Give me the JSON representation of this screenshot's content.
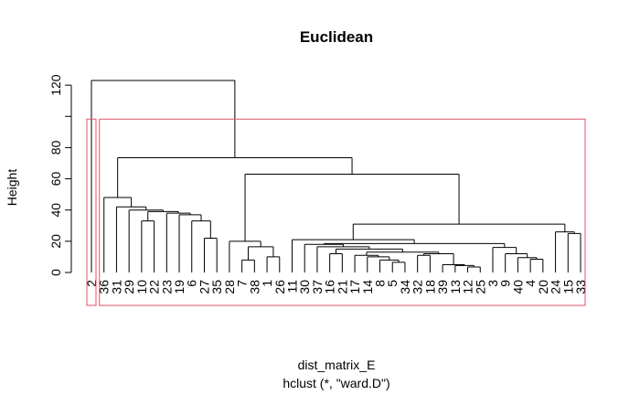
{
  "chart_data": {
    "type": "dendrogram",
    "title": "Euclidean",
    "y_label": "Height",
    "x_label": "dist_matrix_E",
    "subtitle": "hclust (*, \"ward.D\")",
    "ylim": [
      0,
      123
    ],
    "yticks": [
      0,
      20,
      40,
      60,
      80,
      {
        "value": 100,
        "label": null
      },
      120
    ],
    "color": "#000000",
    "cluster_boxes": {
      "k": 2,
      "color": "#df536b"
    },
    "tree": {
      "height": 123,
      "children": [
        {
          "label": "2"
        },
        {
          "height": 73.5,
          "children": [
            {
              "height": 48,
              "children": [
                {
                  "label": "36"
                },
                {
                  "height": 42,
                  "children": [
                    {
                      "label": "31"
                    },
                    {
                      "height": 40,
                      "children": [
                        {
                          "label": "29"
                        },
                        {
                          "height": 39,
                          "children": [
                            {
                              "height": 33,
                              "children": [
                                {
                                  "label": "10"
                                },
                                {
                                  "label": "22"
                                }
                              ]
                            },
                            {
                              "height": 38,
                              "children": [
                                {
                                  "label": "23"
                                },
                                {
                                  "height": 37,
                                  "children": [
                                    {
                                      "label": "19"
                                    },
                                    {
                                      "height": 33,
                                      "children": [
                                        {
                                          "label": "6"
                                        },
                                        {
                                          "height": 22,
                                          "children": [
                                            {
                                              "label": "27"
                                            },
                                            {
                                              "label": "35"
                                            }
                                          ]
                                        }
                                      ]
                                    }
                                  ]
                                }
                              ]
                            }
                          ]
                        }
                      ]
                    }
                  ]
                }
              ]
            },
            {
              "height": 63,
              "children": [
                {
                  "height": 20,
                  "children": [
                    {
                      "label": "28"
                    },
                    {
                      "height": 16.5,
                      "children": [
                        {
                          "height": 8,
                          "children": [
                            {
                              "label": "7"
                            },
                            {
                              "label": "38"
                            }
                          ]
                        },
                        {
                          "height": 10,
                          "children": [
                            {
                              "label": "1"
                            },
                            {
                              "label": "26"
                            }
                          ]
                        }
                      ]
                    }
                  ]
                },
                {
                  "height": 31,
                  "children": [
                    {
                      "height": 21,
                      "children": [
                        {
                          "label": "11"
                        },
                        {
                          "height": 18.5,
                          "children": [
                            {
                              "height": 18,
                              "children": [
                                {
                                  "label": "30"
                                },
                                {
                                  "height": 16.5,
                                  "children": [
                                    {
                                      "label": "37"
                                    },
                                    {
                                      "height": 15,
                                      "children": [
                                        {
                                          "height": 12,
                                          "children": [
                                            {
                                              "label": "16"
                                            },
                                            {
                                              "label": "21"
                                            }
                                          ]
                                        },
                                        {
                                          "height": 13,
                                          "children": [
                                            {
                                              "height": 11,
                                              "children": [
                                                {
                                                  "label": "17"
                                                },
                                                {
                                                  "height": 10,
                                                  "children": [
                                                    {
                                                      "label": "14"
                                                    },
                                                    {
                                                      "height": 8,
                                                      "children": [
                                                        {
                                                          "label": "8"
                                                        },
                                                        {
                                                          "height": 6.5,
                                                          "children": [
                                                            {
                                                              "label": "5"
                                                            },
                                                            {
                                                              "label": "34"
                                                            }
                                                          ]
                                                        }
                                                      ]
                                                    }
                                                  ]
                                                }
                                              ]
                                            },
                                            {
                                              "height": 12,
                                              "children": [
                                                {
                                                  "height": 11,
                                                  "children": [
                                                    {
                                                      "label": "32"
                                                    },
                                                    {
                                                      "label": "18"
                                                    }
                                                  ]
                                                },
                                                {
                                                  "height": 5,
                                                  "children": [
                                                    {
                                                      "label": "39"
                                                    },
                                                    {
                                                      "height": 4.5,
                                                      "children": [
                                                        {
                                                          "label": "13"
                                                        },
                                                        {
                                                          "height": 3.5,
                                                          "children": [
                                                            {
                                                              "label": "12"
                                                            },
                                                            {
                                                              "label": "25"
                                                            }
                                                          ]
                                                        }
                                                      ]
                                                    }
                                                  ]
                                                }
                                              ]
                                            }
                                          ]
                                        }
                                      ]
                                    }
                                  ]
                                }
                              ]
                            },
                            {
                              "height": 16,
                              "children": [
                                {
                                  "label": "3"
                                },
                                {
                                  "height": 12,
                                  "children": [
                                    {
                                      "label": "9"
                                    },
                                    {
                                      "height": 9.5,
                                      "children": [
                                        {
                                          "label": "40"
                                        },
                                        {
                                          "height": 8.5,
                                          "children": [
                                            {
                                              "label": "4"
                                            },
                                            {
                                              "label": "20"
                                            }
                                          ]
                                        }
                                      ]
                                    }
                                  ]
                                }
                              ]
                            }
                          ]
                        }
                      ]
                    },
                    {
                      "height": 26,
                      "children": [
                        {
                          "label": "24"
                        },
                        {
                          "height": 25,
                          "children": [
                            {
                              "label": "15"
                            },
                            {
                              "label": "33"
                            }
                          ]
                        }
                      ]
                    }
                  ]
                }
              ]
            }
          ]
        }
      ]
    }
  }
}
